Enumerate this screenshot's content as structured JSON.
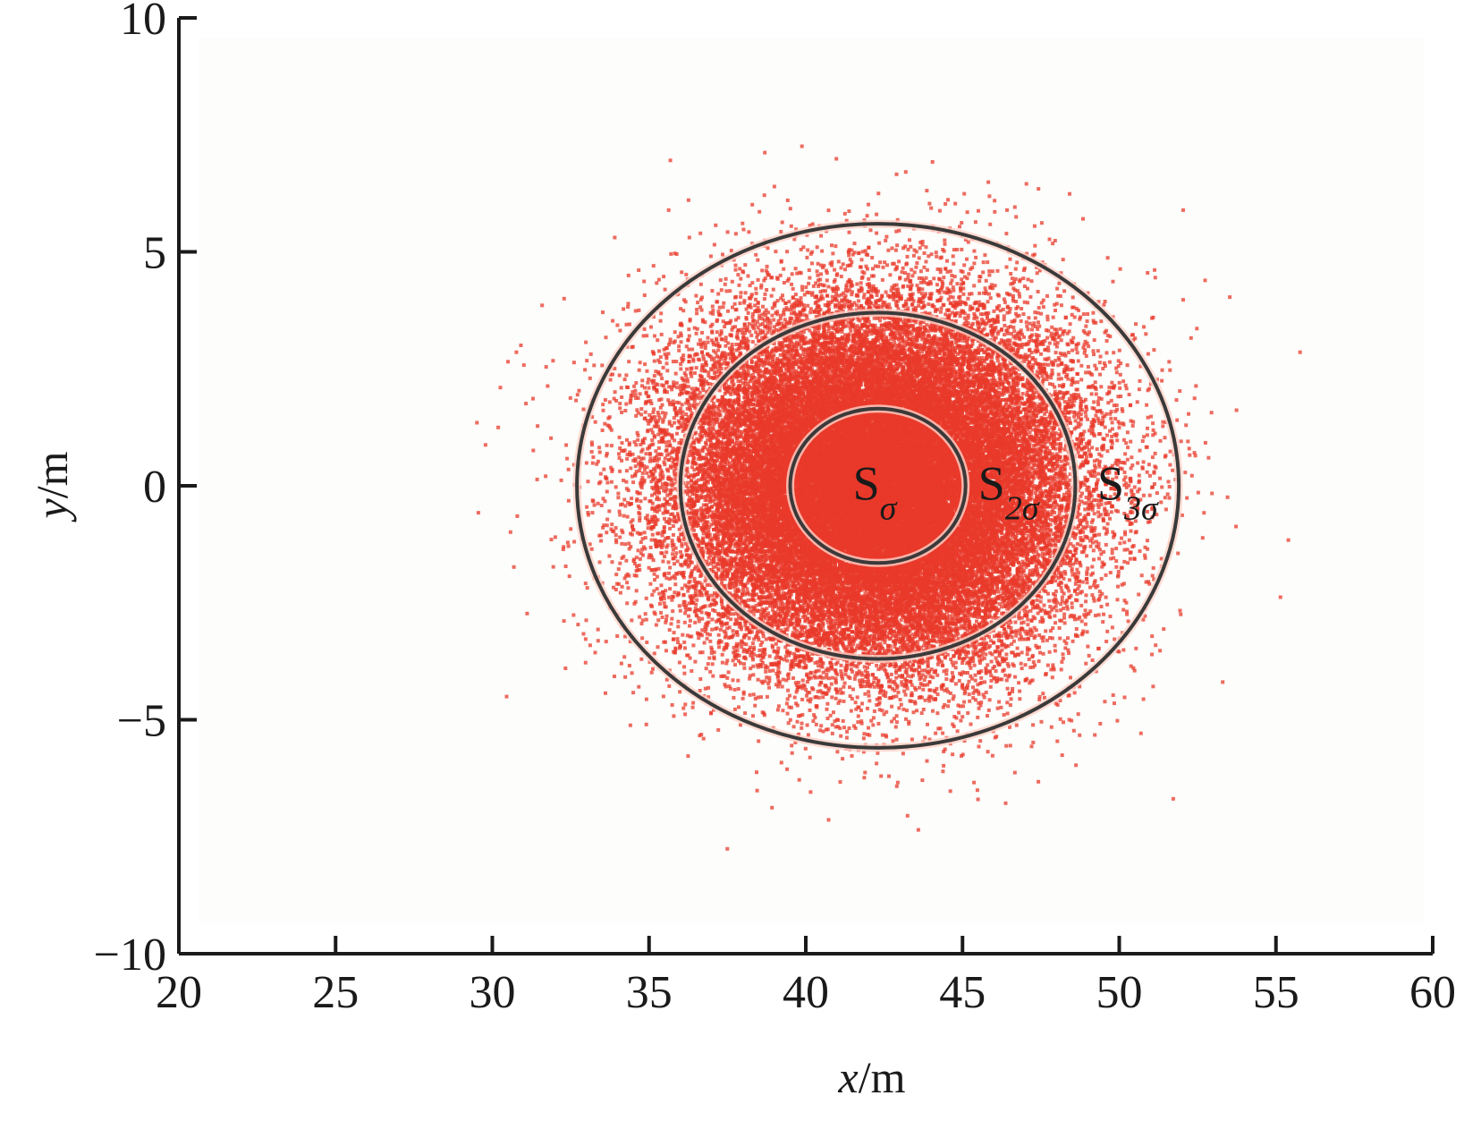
{
  "chart_data": {
    "type": "scatter",
    "title": "",
    "xlabel": {
      "var": "x",
      "unit": "/m"
    },
    "ylabel": {
      "var": "y",
      "unit": "/m"
    },
    "xlim": [
      20,
      60
    ],
    "ylim": [
      -10,
      10
    ],
    "xticks": [
      20,
      25,
      30,
      35,
      40,
      45,
      50,
      55,
      60
    ],
    "yticks": [
      -10,
      -5,
      0,
      5,
      10
    ],
    "xtick_labels": [
      "20",
      "25",
      "30",
      "35",
      "40",
      "45",
      "50",
      "55",
      "60"
    ],
    "ytick_labels": [
      "−10",
      "−5",
      "0",
      "5",
      "10"
    ],
    "grid": false,
    "point_color": "#e8392b",
    "line_color": "#3a3a3a",
    "background_color": "#fdfdfb",
    "scatter_distribution": {
      "center": [
        42.3,
        0
      ],
      "sigma_x": 3.1,
      "sigma_y": 1.85,
      "count": 45000
    },
    "ellipses": [
      {
        "name": "S_sigma",
        "base": "S",
        "subscript": "σ",
        "cx": 42.3,
        "cy": 0,
        "rx": 2.8,
        "ry": 1.65,
        "label_at": [
          41.5,
          -0.3
        ]
      },
      {
        "name": "S_2sigma",
        "base": "S",
        "subscript": "2σ",
        "cx": 42.3,
        "cy": 0,
        "rx": 6.3,
        "ry": 3.7,
        "label_at": [
          45.5,
          -0.3
        ]
      },
      {
        "name": "S_3sigma",
        "base": "S",
        "subscript": "3σ",
        "cx": 42.3,
        "cy": 0,
        "rx": 9.6,
        "ry": 5.6,
        "label_at": [
          49.3,
          -0.3
        ]
      }
    ]
  }
}
